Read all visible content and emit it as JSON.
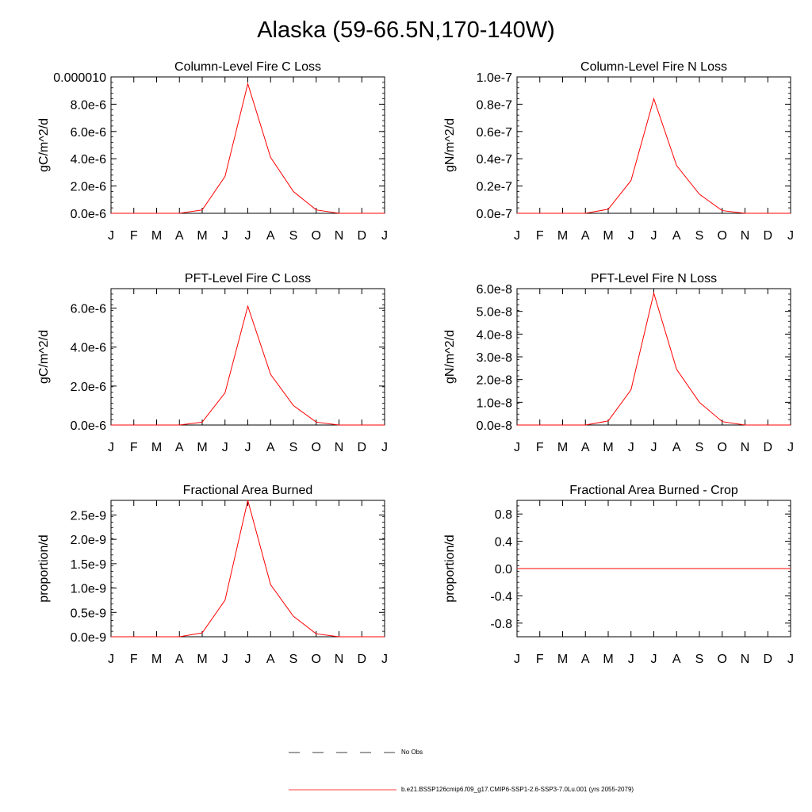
{
  "title": "Alaska (59-66.5N,170-140W)",
  "months": [
    "J",
    "F",
    "M",
    "A",
    "M",
    "J",
    "J",
    "A",
    "S",
    "O",
    "N",
    "D",
    "J"
  ],
  "colors": {
    "model_line": "#ff0000",
    "obs_line": "#000000",
    "axis": "#000000"
  },
  "chart_data": [
    {
      "type": "line",
      "title": "Column-Level Fire C Loss",
      "ylabel": "gC/m^2/d",
      "ylim": [
        0,
        1e-05
      ],
      "yticks": [
        "0.0e-6",
        "2.0e-6",
        "4.0e-6",
        "6.0e-6",
        "8.0e-6",
        "0.000010"
      ],
      "categories": [
        "J",
        "F",
        "M",
        "A",
        "M",
        "J",
        "J",
        "A",
        "S",
        "O",
        "N",
        "D",
        "J"
      ],
      "series": [
        {
          "values": [
            0,
            0,
            0,
            0,
            2.5e-07,
            2.7e-06,
            9.5e-06,
            4.1e-06,
            1.6e-06,
            2.5e-07,
            0,
            0,
            0
          ]
        }
      ]
    },
    {
      "type": "line",
      "title": "Column-Level Fire N Loss",
      "ylabel": "gN/m^2/d",
      "ylim": [
        0,
        1e-07
      ],
      "yticks": [
        "0.0e-7",
        "0.2e-7",
        "0.4e-7",
        "0.6e-7",
        "0.8e-7",
        "1.0e-7"
      ],
      "categories": [
        "J",
        "F",
        "M",
        "A",
        "M",
        "J",
        "J",
        "A",
        "S",
        "O",
        "N",
        "D",
        "J"
      ],
      "series": [
        {
          "values": [
            0,
            0,
            0,
            0,
            3e-09,
            2.4e-08,
            8.4e-08,
            3.5e-08,
            1.4e-08,
            2e-09,
            0,
            0,
            0
          ]
        }
      ]
    },
    {
      "type": "line",
      "title": "PFT-Level Fire C Loss",
      "ylabel": "gC/m^2/d",
      "ylim": [
        0,
        7e-06
      ],
      "yticks": [
        "0.0e-6",
        "2.0e-6",
        "4.0e-6",
        "6.0e-6"
      ],
      "categories": [
        "J",
        "F",
        "M",
        "A",
        "M",
        "J",
        "J",
        "A",
        "S",
        "O",
        "N",
        "D",
        "J"
      ],
      "series": [
        {
          "values": [
            0,
            0,
            0,
            0,
            1.5e-07,
            1.65e-06,
            6.1e-06,
            2.6e-06,
            1e-06,
            1.5e-07,
            0,
            0,
            0
          ]
        }
      ]
    },
    {
      "type": "line",
      "title": "PFT-Level Fire N Loss",
      "ylabel": "gN/m^2/d",
      "ylim": [
        0,
        6e-08
      ],
      "yticks": [
        "0.0e-8",
        "1.0e-8",
        "2.0e-8",
        "3.0e-8",
        "4.0e-8",
        "5.0e-8",
        "6.0e-8"
      ],
      "categories": [
        "J",
        "F",
        "M",
        "A",
        "M",
        "J",
        "J",
        "A",
        "S",
        "O",
        "N",
        "D",
        "J"
      ],
      "series": [
        {
          "values": [
            0,
            0,
            0,
            0,
            1.8e-09,
            1.55e-08,
            5.8e-08,
            2.45e-08,
            1e-08,
            1.5e-09,
            0,
            0,
            0
          ]
        }
      ]
    },
    {
      "type": "line",
      "title": "Fractional Area Burned",
      "ylabel": "proportion/d",
      "ylim": [
        0,
        2.8e-09
      ],
      "yticks": [
        "0.0e-9",
        "0.5e-9",
        "1.0e-9",
        "1.5e-9",
        "2.0e-9",
        "2.5e-9"
      ],
      "categories": [
        "J",
        "F",
        "M",
        "A",
        "M",
        "J",
        "J",
        "A",
        "S",
        "O",
        "N",
        "D",
        "J"
      ],
      "series": [
        {
          "values": [
            0,
            0,
            0,
            0,
            8e-11,
            7.5e-10,
            2.8e-09,
            1.07e-09,
            4.2e-10,
            6e-11,
            0,
            0,
            0
          ]
        }
      ]
    },
    {
      "type": "line",
      "title": "Fractional Area Burned - Crop",
      "ylabel": "proportion/d",
      "ylim": [
        -1,
        1
      ],
      "yticks": [
        "-0.8",
        "-0.4",
        "0.0",
        "0.4",
        "0.8"
      ],
      "categories": [
        "J",
        "F",
        "M",
        "A",
        "M",
        "J",
        "J",
        "A",
        "S",
        "O",
        "N",
        "D",
        "J"
      ],
      "series": [
        {
          "values": [
            0,
            0,
            0,
            0,
            0,
            0,
            0,
            0,
            0,
            0,
            0,
            0,
            0
          ]
        }
      ]
    }
  ],
  "legend": [
    {
      "label": "No Obs",
      "style": "dashed",
      "color": "#000000"
    },
    {
      "label": "b.e21.BSSP126cmip6.f09_g17.CMIP6-SSP1-2.6-SSP3-7.0Lu.001 (yrs 2055-2079)",
      "style": "solid",
      "color": "#ff0000"
    }
  ]
}
